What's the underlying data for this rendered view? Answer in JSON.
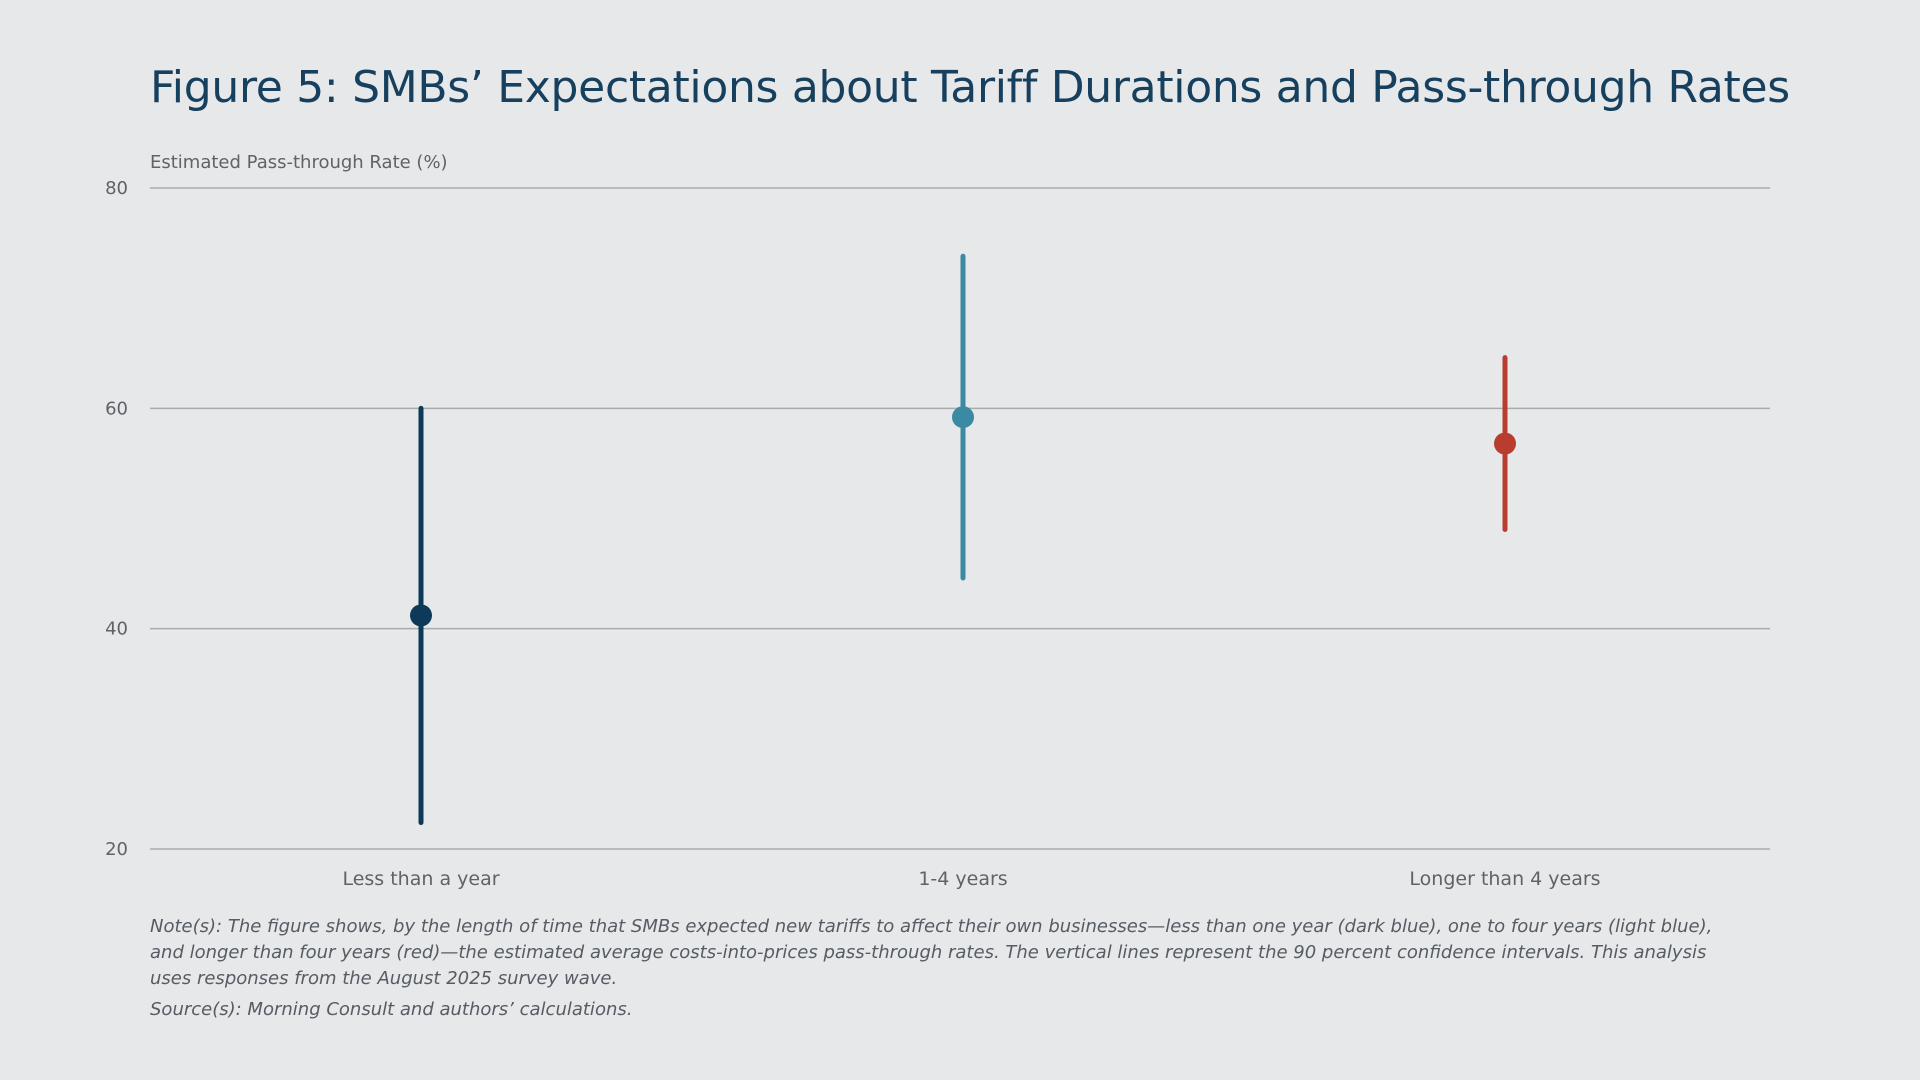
{
  "chart_data": {
    "type": "errorbar",
    "title": "Figure 5: SMBs’ Expectations about Tariff Durations and Pass-through Rates",
    "ylabel": "Estimated Pass-through Rate (%)",
    "xlabel": "",
    "ylim": [
      20,
      80
    ],
    "yticks": [
      20,
      40,
      60,
      80
    ],
    "grid": true,
    "categories": [
      "Less than a year",
      "1-4 years",
      "Longer than 4 years"
    ],
    "points": [
      {
        "category": "Less than a year",
        "estimate": 41.2,
        "ci_low": 22.4,
        "ci_high": 60.0,
        "color": "#0d3a58"
      },
      {
        "category": "1-4 years",
        "estimate": 59.2,
        "ci_low": 44.6,
        "ci_high": 73.8,
        "color": "#3a8aa3"
      },
      {
        "category": "Longer than 4 years",
        "estimate": 56.8,
        "ci_low": 49.0,
        "ci_high": 64.6,
        "color": "#b83d2f"
      }
    ],
    "note": "Note(s): The figure shows, by the length of time that SMBs expected new tariffs to affect their own businesses—less than one year (dark blue), one to four years (light blue), and longer than four years (red)—the estimated average costs-into-prices pass-through rates. The vertical lines represent the 90 percent confidence intervals. This analysis uses responses from the August 2025 survey wave.",
    "source": "Source(s): Morning Consult and authors’ calculations."
  },
  "colors": {
    "background": "#e7e8ea",
    "title": "#16405e",
    "gridline": "#a9abad",
    "axis_text": "#5e6368"
  }
}
